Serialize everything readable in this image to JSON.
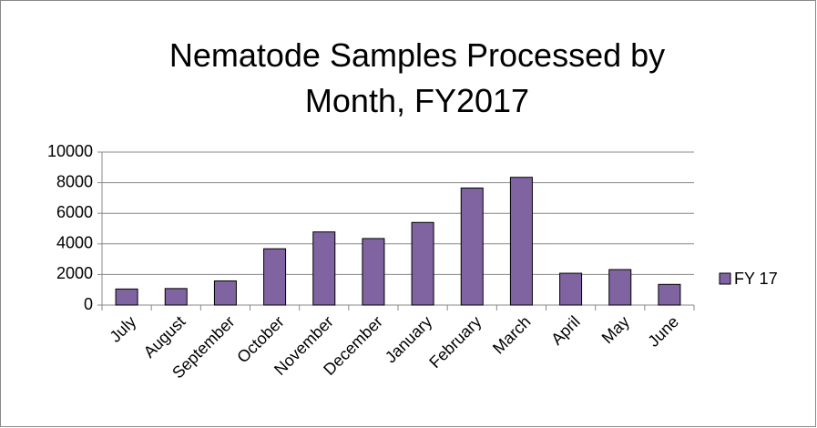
{
  "chart_data": {
    "type": "bar",
    "title": "Nematode Samples Processed by Month, FY2017",
    "categories": [
      "July",
      "August",
      "September",
      "October",
      "November",
      "December",
      "January",
      "February",
      "March",
      "April",
      "May",
      "June"
    ],
    "series": [
      {
        "name": "FY 17",
        "color": "#8064a2",
        "values": [
          1050,
          1080,
          1580,
          3680,
          4780,
          4350,
          5400,
          7650,
          8350,
          2080,
          2320,
          1350
        ]
      }
    ],
    "ylim": [
      0,
      10000
    ],
    "yticks": [
      0,
      2000,
      4000,
      6000,
      8000,
      10000
    ],
    "grid": true,
    "legend": "right"
  }
}
